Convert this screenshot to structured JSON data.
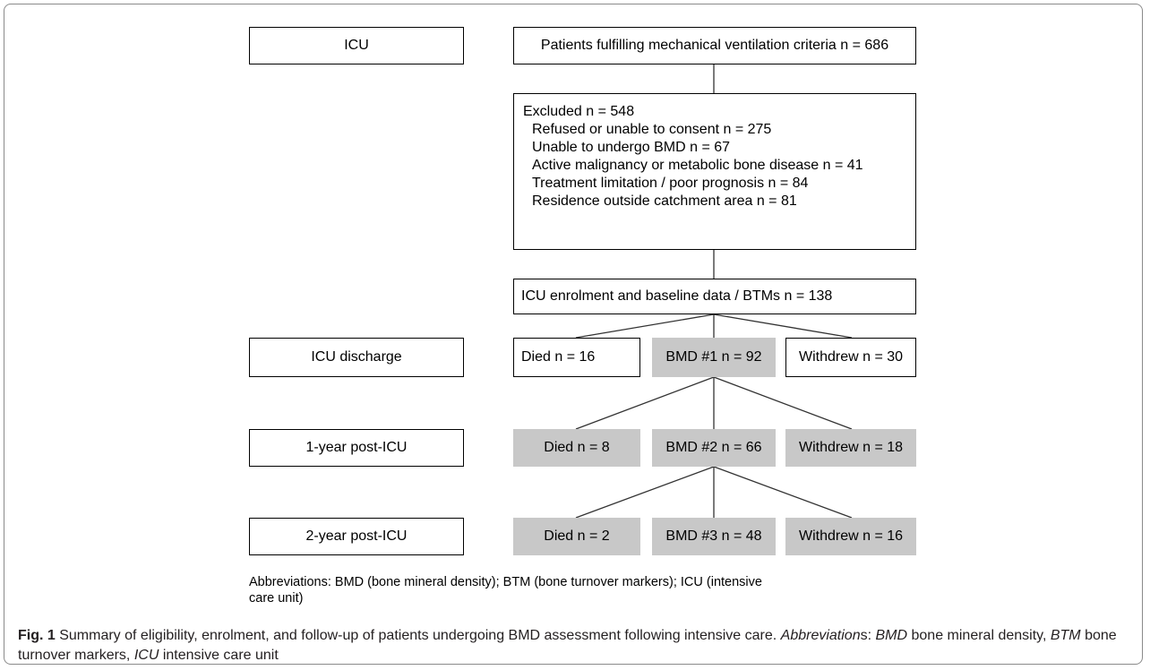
{
  "stages": {
    "icu": "ICU",
    "icu_discharge": "ICU discharge",
    "one_year": "1-year post-ICU",
    "two_year": "2-year post-ICU"
  },
  "flow": {
    "fulfilling": "Patients fulfilling mechanical ventilation criteria n = 686",
    "excluded_title": "Excluded n = 548",
    "excluded_items": [
      "Refused or unable to consent n = 275",
      "Unable to undergo BMD n = 67",
      "Active malignancy or metabolic bone disease n = 41",
      "Treatment limitation / poor prognosis n = 84",
      "Residence outside catchment area n = 81"
    ],
    "enrolment": "ICU enrolment and baseline data / BTMs n = 138",
    "discharge": {
      "died": "Died n = 16",
      "bmd": "BMD #1 n = 92",
      "withdrew": "Withdrew n = 30"
    },
    "year1": {
      "died": "Died n = 8",
      "bmd": "BMD #2 n = 66",
      "withdrew": "Withdrew n = 18"
    },
    "year2": {
      "died": "Died n = 2",
      "bmd": "BMD #3 n = 48",
      "withdrew": "Withdrew n = 16"
    }
  },
  "abbreviations_note": "Abbreviations: BMD (bone mineral density); BTM (bone turnover markers); ICU (intensive care unit)",
  "caption": {
    "label": "Fig. 1",
    "text": " Summary of eligibility, enrolment, and follow-up of patients undergoing BMD assessment following intensive care. ",
    "abbr_word": "Abbreviation",
    "abbr_suffix": "s: ",
    "bmd_term": "BMD",
    "bmd_def": " bone mineral density, ",
    "btm_term": "BTM",
    "btm_def": " bone turnover markers, ",
    "icu_term": "ICU",
    "icu_def": " intensive care unit"
  },
  "colors": {
    "box_border": "#000000",
    "shaded_box": "#c8c8c8",
    "frame_border": "#8a8a8a"
  }
}
